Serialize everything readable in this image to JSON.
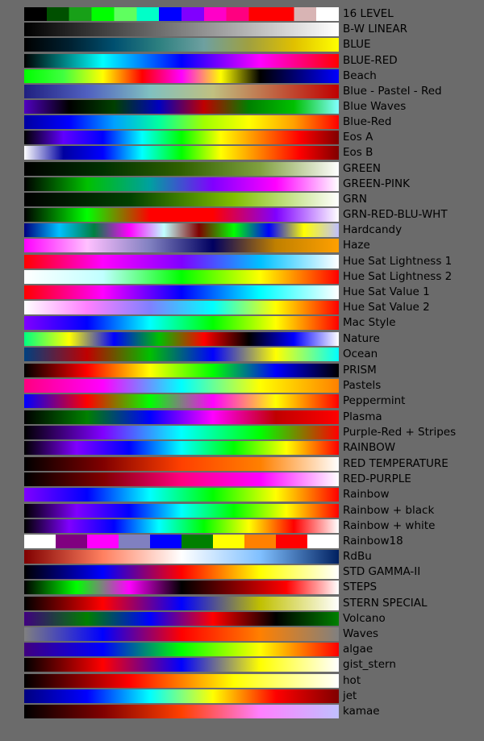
{
  "colormaps": [
    {
      "name": "16 LEVEL",
      "colors": [
        "#000000",
        "#005000",
        "#18a018",
        "#00ff00",
        "#5fff5f",
        "#00ffc8",
        "#0000ff",
        "#8000ff",
        "#ff00c8",
        "#ff0080",
        "#ff0000",
        "#ff0000",
        "#d8b4b4",
        "#ffffff"
      ],
      "stepped": true
    },
    {
      "name": "B-W LINEAR",
      "colors": [
        "#000000",
        "#ffffff"
      ]
    },
    {
      "name": "BLUE",
      "colors": [
        "#000000",
        "#002030",
        "#005070",
        "#2d8080",
        "#6ea0a0",
        "#a0a040",
        "#e0c000",
        "#ffff00"
      ]
    },
    {
      "name": "BLUE-RED",
      "colors": [
        "#000000",
        "#00ffff",
        "#0000ff",
        "#ff00ff",
        "#ff0000"
      ]
    },
    {
      "name": "Beach",
      "colors": [
        "#00ff00",
        "#40ff40",
        "#ffff00",
        "#ff0000",
        "#ff00ff",
        "#ffff00",
        "#000000",
        "#000080",
        "#0000ff"
      ]
    },
    {
      "name": "Blue - Pastel - Red",
      "colors": [
        "#202080",
        "#5060c0",
        "#80c0c0",
        "#c0c080",
        "#c06040",
        "#c00000"
      ]
    },
    {
      "name": "Blue Waves",
      "colors": [
        "#5000c0",
        "#000000",
        "#004000",
        "#0000c0",
        "#c00000",
        "#008000",
        "#00c000",
        "#80ffff"
      ]
    },
    {
      "name": "Blue-Red",
      "colors": [
        "#0000a0",
        "#0000ff",
        "#00a0ff",
        "#00ffa0",
        "#a0ff00",
        "#ffff00",
        "#ffa000",
        "#ff0000"
      ]
    },
    {
      "name": "Eos A",
      "colors": [
        "#000000",
        "#6000ff",
        "#0000ff",
        "#00ffff",
        "#00ff00",
        "#ffff00",
        "#ff8000",
        "#ff0000",
        "#800000"
      ]
    },
    {
      "name": "Eos B",
      "colors": [
        "#ffffff",
        "#0000a0",
        "#0000ff",
        "#00ffff",
        "#00ff00",
        "#ffff00",
        "#ff8000",
        "#ff0000",
        "#800000"
      ]
    },
    {
      "name": "GREEN",
      "colors": [
        "#000000",
        "#003000",
        "#306000",
        "#80a040",
        "#ffffff"
      ]
    },
    {
      "name": "GREEN-PINK",
      "colors": [
        "#000000",
        "#00c000",
        "#00a0a0",
        "#8000ff",
        "#ff00ff",
        "#ffffff"
      ]
    },
    {
      "name": "GRN",
      "colors": [
        "#000000",
        "#004000",
        "#80c000",
        "#ffffff"
      ]
    },
    {
      "name": "GRN-RED-BLU-WHT",
      "colors": [
        "#000000",
        "#00ff00",
        "#ff0000",
        "#ff0000",
        "#8000ff",
        "#ffffff"
      ]
    },
    {
      "name": "Hardcandy",
      "colors": [
        "#000080",
        "#00c0ff",
        "#008040",
        "#ff00ff",
        "#c0ffff",
        "#800000",
        "#00ff00",
        "#0000ff",
        "#ffff00",
        "#c0c0ff"
      ]
    },
    {
      "name": "Haze",
      "colors": [
        "#ff00ff",
        "#ffc0ff",
        "#8080c0",
        "#000060",
        "#c08000",
        "#ffa000"
      ]
    },
    {
      "name": "Hue Sat Lightness 1",
      "colors": [
        "#ff0000",
        "#ff00ff",
        "#8000ff",
        "#00c0ff",
        "#ffffff"
      ]
    },
    {
      "name": "Hue Sat Lightness 2",
      "colors": [
        "#ffffff",
        "#c0ffff",
        "#00ff00",
        "#ffff00",
        "#ff0000"
      ]
    },
    {
      "name": "Hue Sat Value 1",
      "colors": [
        "#ff0000",
        "#ff00ff",
        "#0000ff",
        "#00ffff",
        "#ffffff"
      ]
    },
    {
      "name": "Hue Sat Value 2",
      "colors": [
        "#ffffff",
        "#ff80ff",
        "#8080ff",
        "#00ffff",
        "#ffff00",
        "#ff0000"
      ]
    },
    {
      "name": "Mac Style",
      "colors": [
        "#8000ff",
        "#0000ff",
        "#00ffff",
        "#00ff00",
        "#ffff00",
        "#ff0000"
      ]
    },
    {
      "name": "Nature",
      "colors": [
        "#00ff80",
        "#ffff00",
        "#0000ff",
        "#00c000",
        "#ff0000",
        "#000000",
        "#0000ff",
        "#ffffff"
      ]
    },
    {
      "name": "Ocean",
      "colors": [
        "#004080",
        "#c00000",
        "#00c000",
        "#0000ff",
        "#ffff00",
        "#00ffff"
      ]
    },
    {
      "name": "PRISM",
      "colors": [
        "#000000",
        "#ff0000",
        "#ffff00",
        "#00ff00",
        "#0000ff",
        "#000000"
      ]
    },
    {
      "name": "Pastels",
      "colors": [
        "#ff0080",
        "#ff00ff",
        "#00ffff",
        "#ffff00",
        "#ff8000"
      ]
    },
    {
      "name": "Peppermint",
      "colors": [
        "#0000ff",
        "#ff0000",
        "#00ff00",
        "#ff00ff",
        "#ffff00",
        "#ff0000"
      ]
    },
    {
      "name": "Plasma",
      "colors": [
        "#000000",
        "#008000",
        "#0000ff",
        "#ff00ff",
        "#c00000",
        "#ff0000"
      ]
    },
    {
      "name": "Purple-Red + Stripes",
      "colors": [
        "#000000",
        "#8000ff",
        "#00ffff",
        "#00ff00",
        "#ff0000"
      ]
    },
    {
      "name": "RAINBOW",
      "colors": [
        "#000000",
        "#8000ff",
        "#0000ff",
        "#00ffff",
        "#00ff00",
        "#ffff00",
        "#ff0000"
      ]
    },
    {
      "name": "RED TEMPERATURE",
      "colors": [
        "#000000",
        "#800000",
        "#ff4000",
        "#ff8000",
        "#ffffff"
      ]
    },
    {
      "name": "RED-PURPLE",
      "colors": [
        "#000000",
        "#800000",
        "#ff0080",
        "#ff00ff",
        "#ffffff"
      ]
    },
    {
      "name": "Rainbow",
      "colors": [
        "#8000ff",
        "#0000ff",
        "#00ffff",
        "#00ff00",
        "#ffff00",
        "#ff0000"
      ]
    },
    {
      "name": "Rainbow + black",
      "colors": [
        "#000000",
        "#8000ff",
        "#0000ff",
        "#00ffff",
        "#00ff00",
        "#ffff00",
        "#ff0000"
      ]
    },
    {
      "name": "Rainbow + white",
      "colors": [
        "#000000",
        "#8000ff",
        "#0000ff",
        "#00ffff",
        "#00ff00",
        "#ffff00",
        "#ff0000",
        "#ffffff"
      ]
    },
    {
      "name": "Rainbow18",
      "colors": [
        "#ffffff",
        "#800080",
        "#ff00ff",
        "#8080c0",
        "#0000ff",
        "#008000",
        "#ffff00",
        "#ff8000",
        "#ff0000",
        "#ffffff"
      ],
      "stepped": true
    },
    {
      "name": "RdBu",
      "colors": [
        "#800000",
        "#ff8060",
        "#ffffff",
        "#80c0ff",
        "#002060"
      ]
    },
    {
      "name": "STD GAMMA-II",
      "colors": [
        "#000000",
        "#0000ff",
        "#ff0000",
        "#ffff00",
        "#ffffff"
      ]
    },
    {
      "name": "STEPS",
      "colors": [
        "#000000",
        "#00ff00",
        "#ff00ff",
        "#000000",
        "#800000",
        "#ff0000",
        "#ffffff"
      ]
    },
    {
      "name": "STERN SPECIAL",
      "colors": [
        "#000000",
        "#ff0000",
        "#0000ff",
        "#c0c000",
        "#ffffff"
      ]
    },
    {
      "name": "Volcano",
      "colors": [
        "#400080",
        "#008000",
        "#0000ff",
        "#ff0000",
        "#000000",
        "#008000"
      ]
    },
    {
      "name": "Waves",
      "colors": [
        "#808080",
        "#0000ff",
        "#ff0000",
        "#ff8000",
        "#808080"
      ]
    },
    {
      "name": "algae",
      "colors": [
        "#400080",
        "#0000ff",
        "#00ff00",
        "#ffff00",
        "#ff0000"
      ]
    },
    {
      "name": "gist_stern",
      "colors": [
        "#000000",
        "#ff0000",
        "#0000ff",
        "#ffff00",
        "#ffffff"
      ]
    },
    {
      "name": "hot",
      "colors": [
        "#000000",
        "#ff0000",
        "#ffff00",
        "#ffffff"
      ]
    },
    {
      "name": "jet",
      "colors": [
        "#000080",
        "#0000ff",
        "#00ffff",
        "#ffff00",
        "#ff0000",
        "#800000"
      ]
    },
    {
      "name": "kamae",
      "colors": [
        "#000000",
        "#800000",
        "#ff4000",
        "#ff80ff",
        "#c0c0ff"
      ]
    }
  ]
}
